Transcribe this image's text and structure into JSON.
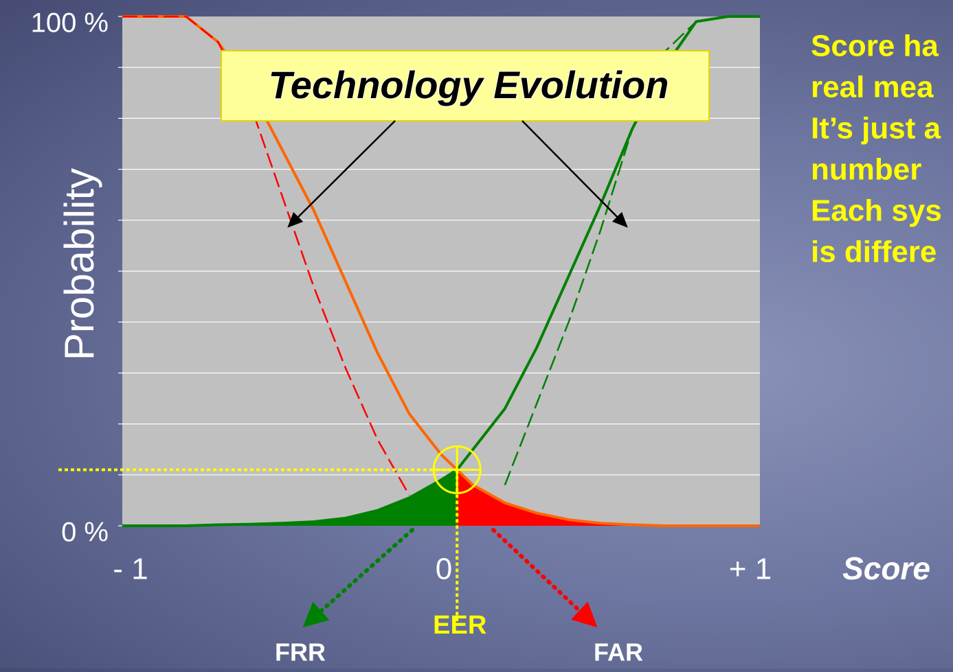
{
  "chart_data": {
    "type": "line",
    "y_label": "Probability",
    "x_label": "Score",
    "annotation": "Technology Evolution",
    "xlim": [
      -1,
      1
    ],
    "ylim": [
      0,
      100
    ],
    "xticks": [
      {
        "value": -1,
        "label": "- 1"
      },
      0,
      {
        "value": 1,
        "label": "+ 1"
      }
    ],
    "yticks": [
      {
        "value": 0,
        "label": "0 %"
      },
      {
        "value": 100,
        "label": "100 %"
      }
    ],
    "ygrid": [
      10,
      20,
      30,
      40,
      50,
      60,
      70,
      80,
      90
    ],
    "x": [
      -1,
      -0.8,
      -0.7,
      -0.6,
      -0.5,
      -0.4,
      -0.3,
      -0.2,
      -0.1,
      0,
      0.05,
      0.1,
      0.2,
      0.3,
      0.4,
      0.5,
      0.6,
      0.7,
      0.8,
      0.9,
      1
    ],
    "series": [
      {
        "color": "#ff6600",
        "fill": "#ff0000",
        "style": "solid",
        "values": [
          100,
          100,
          95,
          86,
          74,
          62,
          48,
          34,
          22,
          14,
          11,
          8,
          4.5,
          2.5,
          1.2,
          0.5,
          0.2,
          0,
          0,
          0,
          0
        ]
      },
      {
        "color": "#008000",
        "fill": "#008000",
        "style": "solid",
        "values": [
          0,
          0,
          0.2,
          0.3,
          0.5,
          0.8,
          1.5,
          3,
          5.5,
          9,
          11,
          15,
          23,
          35,
          49,
          63,
          78,
          90,
          99,
          100,
          100
        ]
      },
      {
        "color": "#ff0000",
        "style": "dashed",
        "values": [
          100,
          100,
          95,
          83,
          65,
          47,
          31,
          17,
          6,
          null,
          null,
          null,
          null,
          null,
          null,
          null,
          null,
          null,
          null,
          null,
          null
        ]
      },
      {
        "color": "#008000",
        "style": "dashed",
        "values": [
          null,
          null,
          null,
          null,
          null,
          null,
          null,
          null,
          null,
          null,
          null,
          null,
          8,
          24,
          40,
          58,
          78,
          93,
          99,
          100,
          100
        ]
      }
    ],
    "eer": {
      "label": "EER",
      "x": 0.05,
      "y": 11
    },
    "rate_labels": {
      "frr": "FRR",
      "far": "FAR"
    }
  },
  "side_text": [
    "Score ha",
    "real mea",
    "It’s just a",
    "number",
    "Each sys",
    "is differe"
  ]
}
